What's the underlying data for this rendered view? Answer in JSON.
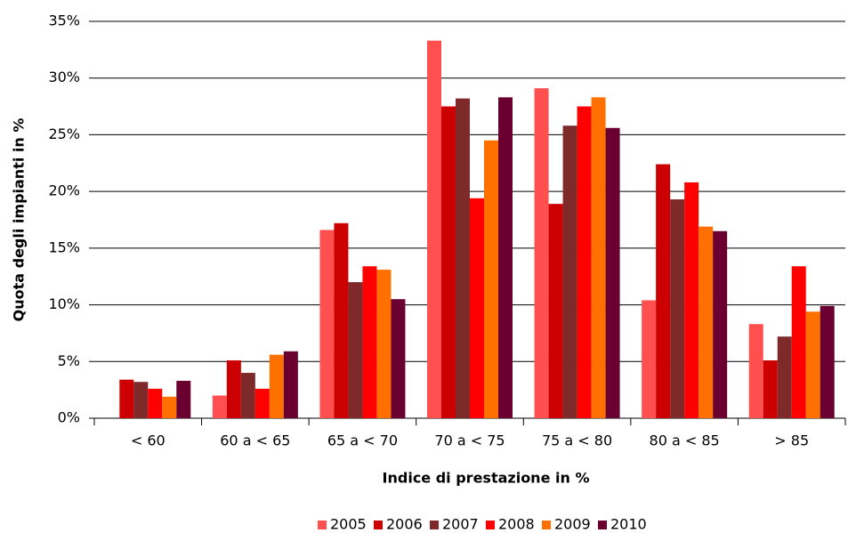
{
  "chart_data": {
    "type": "bar",
    "x_label": "Indice di prestazione in %",
    "y_label": "Quota degli impianti in %",
    "categories": [
      "< 60",
      "60 a < 65",
      "65 a < 70",
      "70 a < 75",
      "75 a < 80",
      "80 a < 85",
      "> 85"
    ],
    "series": [
      {
        "name": "2005",
        "color": "#ff4f4f",
        "values": [
          0,
          2.0,
          16.6,
          33.3,
          29.1,
          10.4,
          8.3
        ]
      },
      {
        "name": "2006",
        "color": "#cc0000",
        "values": [
          3.4,
          5.1,
          17.2,
          27.5,
          18.9,
          22.4,
          5.1
        ]
      },
      {
        "name": "2007",
        "color": "#7f2a2a",
        "values": [
          3.2,
          4.0,
          12.0,
          28.2,
          25.8,
          19.3,
          7.2
        ]
      },
      {
        "name": "2008",
        "color": "#ff0000",
        "values": [
          2.6,
          2.6,
          13.4,
          19.4,
          27.5,
          20.8,
          13.4
        ]
      },
      {
        "name": "2009",
        "color": "#ff7000",
        "values": [
          1.9,
          5.6,
          13.1,
          24.5,
          28.3,
          16.9,
          9.4
        ]
      },
      {
        "name": "2010",
        "color": "#6a0030",
        "values": [
          3.3,
          5.9,
          10.5,
          28.3,
          25.6,
          16.5,
          9.9
        ]
      }
    ],
    "ylim": [
      0,
      35
    ],
    "yticks": [
      {
        "value": 0,
        "label": "0%"
      },
      {
        "value": 5,
        "label": "5%"
      },
      {
        "value": 10,
        "label": "10%"
      },
      {
        "value": 15,
        "label": "15%"
      },
      {
        "value": 20,
        "label": "20%"
      },
      {
        "value": 25,
        "label": "25%"
      },
      {
        "value": 30,
        "label": "30%"
      },
      {
        "value": 35,
        "label": "35%"
      }
    ],
    "grid": true,
    "legend": "bottom"
  }
}
